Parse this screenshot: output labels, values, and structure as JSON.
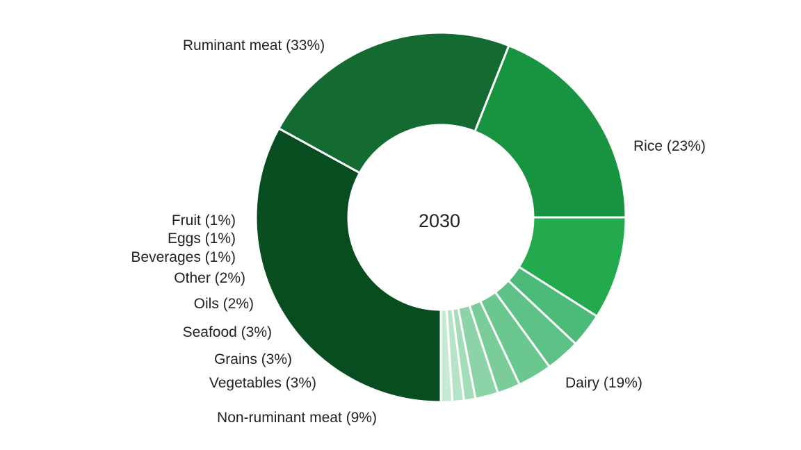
{
  "chart_data": {
    "type": "pie",
    "subtype": "donut",
    "center_label": "2030",
    "slices": [
      {
        "label": "Ruminant meat",
        "value": 33,
        "text": "Ruminant meat (33%)",
        "color": "#074d20"
      },
      {
        "label": "Rice",
        "value": 23,
        "text": "Rice (23%)",
        "color": "#146b32"
      },
      {
        "label": "Dairy",
        "value": 19,
        "text": "Dairy (19%)",
        "color": "#189441"
      },
      {
        "label": "Non-ruminant meat",
        "value": 9,
        "text": "Non-ruminant meat (9%)",
        "color": "#23a94e"
      },
      {
        "label": "Vegetables",
        "value": 3,
        "text": "Vegetables (3%)",
        "color": "#4cbb7a"
      },
      {
        "label": "Grains",
        "value": 3,
        "text": "Grains (3%)",
        "color": "#5ec187"
      },
      {
        "label": "Seafood",
        "value": 3,
        "text": "Seafood (3%)",
        "color": "#6ac78e"
      },
      {
        "label": "Oils",
        "value": 2,
        "text": "Oils (2%)",
        "color": "#7bcc9b"
      },
      {
        "label": "Other",
        "value": 2,
        "text": "Other (2%)",
        "color": "#8cd4a8"
      },
      {
        "label": "Beverages",
        "value": 1,
        "text": "Beverages (1%)",
        "color": "#a3dcb9"
      },
      {
        "label": "Eggs",
        "value": 1,
        "text": "Eggs (1%)",
        "color": "#b5e3c6"
      },
      {
        "label": "Fruit",
        "value": 1,
        "text": "Fruit (1%)",
        "color": "#c8ead5"
      }
    ]
  }
}
